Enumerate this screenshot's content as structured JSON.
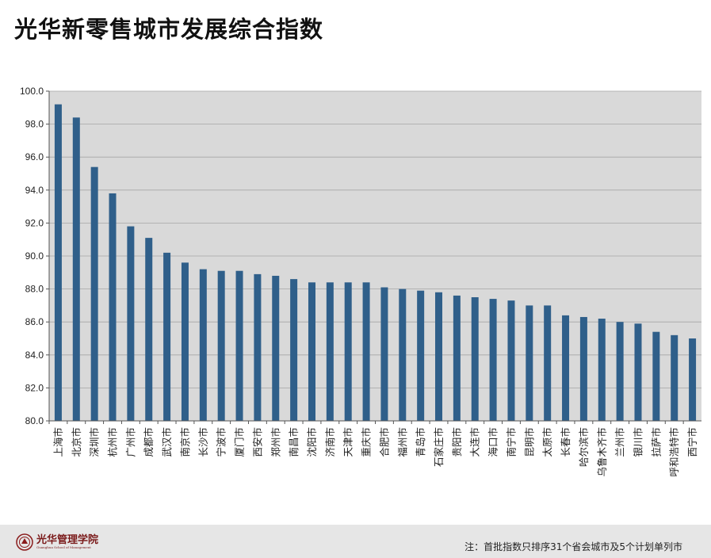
{
  "page": {
    "title": "光华新零售城市发展综合指数",
    "footer_note": "注：首批指数只排序31个省会城市及5个计划单列市",
    "logo_name": "光华管理学院",
    "logo_sub": "Guanghua School of Management"
  },
  "colors": {
    "bar": "#2f5f8a",
    "plot_bg": "#d9d9d9",
    "grid": "#a6a6a6"
  },
  "chart_data": {
    "type": "bar",
    "title": "",
    "xlabel": "",
    "ylabel": "",
    "ylim": [
      80,
      100
    ],
    "y_ticks": [
      "80.0",
      "82.0",
      "84.0",
      "86.0",
      "88.0",
      "90.0",
      "92.0",
      "94.0",
      "96.0",
      "98.0",
      "100.0"
    ],
    "grid": true,
    "categories": [
      "上海市",
      "北京市",
      "深圳市",
      "杭州市",
      "广州市",
      "成都市",
      "武汉市",
      "南京市",
      "长沙市",
      "宁波市",
      "厦门市",
      "西安市",
      "郑州市",
      "南昌市",
      "沈阳市",
      "济南市",
      "天津市",
      "重庆市",
      "合肥市",
      "福州市",
      "青岛市",
      "石家庄市",
      "贵阳市",
      "大连市",
      "海口市",
      "南宁市",
      "昆明市",
      "太原市",
      "长春市",
      "哈尔滨市",
      "乌鲁木齐市",
      "兰州市",
      "银川市",
      "拉萨市",
      "呼和浩特市",
      "西宁市"
    ],
    "values": [
      99.2,
      98.4,
      95.4,
      93.8,
      91.8,
      91.1,
      90.2,
      89.6,
      89.2,
      89.1,
      89.1,
      88.9,
      88.8,
      88.6,
      88.4,
      88.4,
      88.4,
      88.4,
      88.1,
      88.0,
      87.9,
      87.8,
      87.6,
      87.5,
      87.4,
      87.3,
      87.0,
      87.0,
      86.4,
      86.3,
      86.2,
      86.0,
      85.9,
      85.4,
      85.2,
      85.0
    ]
  }
}
